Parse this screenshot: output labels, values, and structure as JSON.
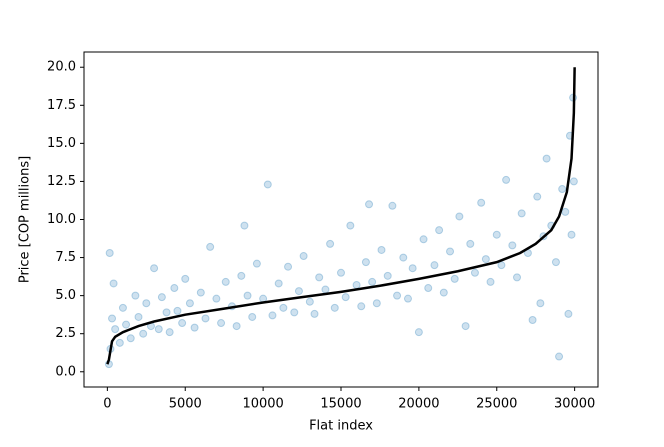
{
  "chart_data": {
    "type": "scatter",
    "xlabel": "Flat index",
    "ylabel": "Price [COP millions]",
    "xlim": [
      -1500,
      31500
    ],
    "ylim": [
      -1,
      21
    ],
    "xticks": [
      0,
      5000,
      10000,
      15000,
      20000,
      25000,
      30000
    ],
    "yticks": [
      {
        "value": 0,
        "label": "0.0"
      },
      {
        "value": 2.5,
        "label": "2.5"
      },
      {
        "value": 5,
        "label": "5.0"
      },
      {
        "value": 7.5,
        "label": "7.5"
      },
      {
        "value": 10,
        "label": "10.0"
      },
      {
        "value": 12.5,
        "label": "12.5"
      },
      {
        "value": 15,
        "label": "15.0"
      },
      {
        "value": 17.5,
        "label": "17.5"
      },
      {
        "value": 20,
        "label": "20.0"
      }
    ],
    "series": [
      {
        "type": "scatter",
        "color": "#1f77b4",
        "x": [
          200,
          300,
          400,
          500,
          800,
          1000,
          1200,
          1500,
          1800,
          2000,
          2300,
          2500,
          2800,
          3000,
          3300,
          3500,
          3800,
          4000,
          4300,
          4500,
          4800,
          5000,
          5300,
          5600,
          6000,
          6300,
          6600,
          7000,
          7300,
          7600,
          8000,
          8300,
          8600,
          9000,
          9300,
          9600,
          10000,
          10300,
          10600,
          11000,
          11300,
          11600,
          12000,
          12300,
          12600,
          13000,
          13300,
          13600,
          14000,
          14300,
          14600,
          15000,
          15300,
          15600,
          16000,
          16300,
          16600,
          17000,
          17300,
          17600,
          18000,
          18300,
          18600,
          19000,
          19300,
          19600,
          20000,
          20300,
          20600,
          21000,
          21300,
          21600,
          22000,
          22300,
          22600,
          23000,
          23300,
          23600,
          24000,
          24300,
          24600,
          25000,
          25300,
          25600,
          26000,
          26300,
          26600,
          27000,
          27300,
          27600,
          28000,
          28200,
          28500,
          28800,
          29000,
          29200,
          29400,
          29600,
          29700,
          29800,
          29900,
          29950,
          100,
          150,
          27800,
          16800,
          8800
        ],
        "values": [
          1.5,
          3.5,
          5.8,
          2.8,
          1.9,
          4.2,
          3.1,
          2.2,
          5.0,
          3.6,
          2.5,
          4.5,
          3.0,
          6.8,
          2.8,
          4.9,
          3.9,
          2.6,
          5.5,
          4.0,
          3.2,
          6.1,
          4.5,
          2.9,
          5.2,
          3.5,
          8.2,
          4.8,
          3.2,
          5.9,
          4.3,
          3.0,
          6.3,
          5.0,
          3.6,
          7.1,
          4.8,
          12.3,
          3.7,
          5.8,
          4.2,
          6.9,
          3.9,
          5.3,
          7.6,
          4.6,
          3.8,
          6.2,
          5.4,
          8.4,
          4.2,
          6.5,
          4.9,
          9.6,
          5.7,
          4.3,
          7.2,
          5.9,
          4.5,
          8.0,
          6.3,
          10.9,
          5.0,
          7.5,
          4.8,
          6.8,
          2.6,
          8.7,
          5.5,
          7.0,
          9.3,
          5.2,
          7.9,
          6.1,
          10.2,
          3.0,
          8.4,
          6.5,
          11.1,
          7.4,
          5.9,
          9.0,
          7.0,
          12.6,
          8.3,
          6.2,
          10.4,
          7.8,
          3.4,
          11.5,
          8.9,
          14.0,
          9.6,
          7.2,
          1.0,
          12.0,
          10.5,
          3.8,
          15.5,
          9.0,
          18.0,
          12.5,
          0.5,
          7.8,
          4.5,
          11.0,
          9.6
        ]
      },
      {
        "type": "line",
        "color": "#000000",
        "x": [
          0,
          100,
          300,
          500,
          1000,
          2000,
          3000,
          5000,
          7500,
          10000,
          12500,
          15000,
          17500,
          20000,
          22500,
          25000,
          26500,
          27500,
          28500,
          29000,
          29500,
          29800,
          29950,
          30000
        ],
        "values": [
          0.5,
          0.8,
          2.0,
          2.3,
          2.6,
          3.0,
          3.3,
          3.75,
          4.15,
          4.55,
          4.9,
          5.25,
          5.65,
          6.1,
          6.6,
          7.2,
          7.8,
          8.4,
          9.3,
          10.2,
          11.8,
          14.0,
          17.0,
          20.0
        ]
      }
    ]
  }
}
